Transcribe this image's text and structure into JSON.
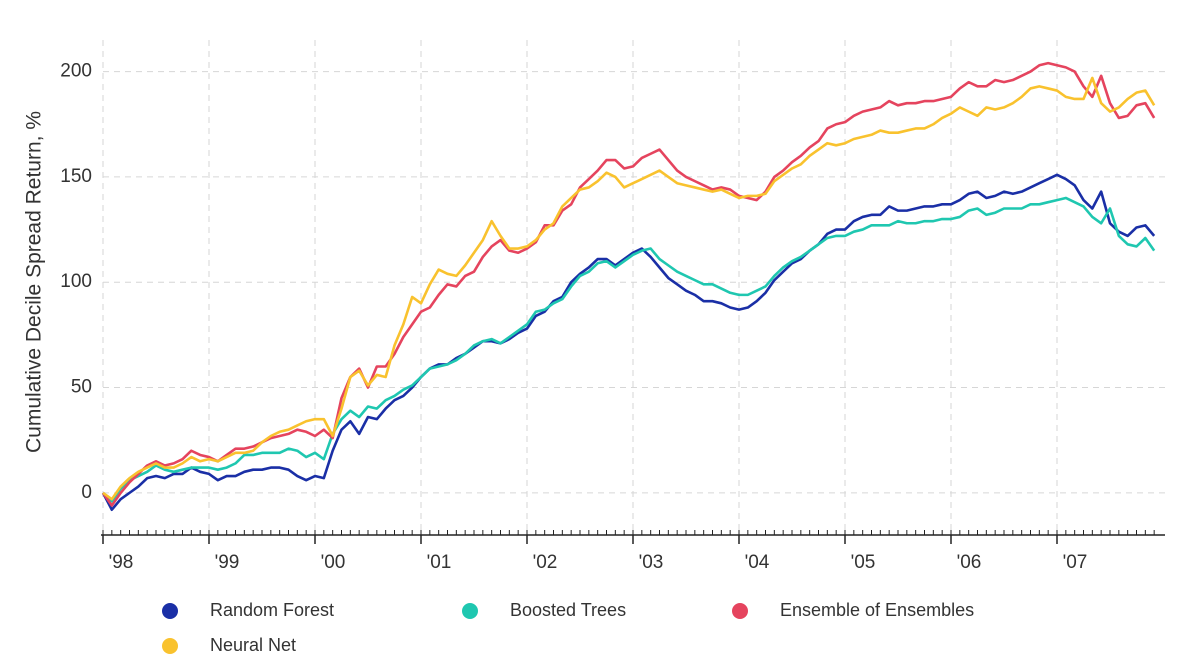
{
  "chart_data": {
    "type": "line",
    "y_label": "Cumulative Decile Spread Return, %",
    "categories": [
      "'98",
      null,
      null,
      null,
      null,
      null,
      null,
      null,
      null,
      null,
      null,
      null,
      "'99",
      null,
      null,
      null,
      null,
      null,
      null,
      null,
      null,
      null,
      null,
      null,
      "'00",
      null,
      null,
      null,
      null,
      null,
      null,
      null,
      null,
      null,
      null,
      null,
      "'01",
      null,
      null,
      null,
      null,
      null,
      null,
      null,
      null,
      null,
      null,
      null,
      "'02",
      null,
      null,
      null,
      null,
      null,
      null,
      null,
      null,
      null,
      null,
      null,
      "'03",
      null,
      null,
      null,
      null,
      null,
      null,
      null,
      null,
      null,
      null,
      null,
      "'04",
      null,
      null,
      null,
      null,
      null,
      null,
      null,
      null,
      null,
      null,
      null,
      "'05",
      null,
      null,
      null,
      null,
      null,
      null,
      null,
      null,
      null,
      null,
      null,
      "'06",
      null,
      null,
      null,
      null,
      null,
      null,
      null,
      null,
      null,
      null,
      null,
      "'07",
      null,
      null,
      null,
      null,
      null,
      null,
      null,
      null,
      null,
      null,
      null
    ],
    "ylim": [
      -20,
      215
    ],
    "yticks": [
      0,
      50,
      100,
      150,
      200
    ],
    "grid": true,
    "series": [
      {
        "name": "Random Forest",
        "color": "#1a2fa6",
        "values": [
          0,
          -8,
          -3,
          0,
          3,
          7,
          8,
          7,
          9,
          9,
          12,
          10,
          9,
          6,
          8,
          8,
          10,
          11,
          11,
          12,
          12,
          11,
          8,
          6,
          8,
          7,
          20,
          30,
          34,
          28,
          36,
          35,
          40,
          44,
          46,
          50,
          55,
          59,
          61,
          61,
          64,
          66,
          69,
          72,
          72,
          71,
          73,
          76,
          78,
          84,
          86,
          91,
          93,
          100,
          104,
          107,
          111,
          111,
          108,
          111,
          114,
          116,
          112,
          107,
          102,
          99,
          96,
          94,
          91,
          91,
          90,
          88,
          87,
          88,
          91,
          95,
          101,
          105,
          109,
          111,
          115,
          118,
          123,
          125,
          125,
          129,
          131,
          132,
          132,
          136,
          134,
          134,
          135,
          136,
          136,
          137,
          137,
          139,
          142,
          143,
          140,
          141,
          143,
          142,
          143,
          145,
          147,
          149,
          151,
          149,
          146,
          139,
          135,
          143,
          128,
          124,
          122,
          126,
          127,
          122
        ]
      },
      {
        "name": "Boosted Trees",
        "color": "#1fc7b0",
        "values": [
          0,
          -4,
          2,
          6,
          8,
          10,
          13,
          11,
          10,
          11,
          12,
          12,
          12,
          11,
          12,
          14,
          18,
          18,
          19,
          19,
          19,
          21,
          20,
          17,
          19,
          16,
          28,
          35,
          39,
          36,
          41,
          40,
          44,
          46,
          49,
          51,
          55,
          59,
          60,
          61,
          63,
          66,
          70,
          72,
          73,
          71,
          74,
          77,
          80,
          86,
          87,
          90,
          92,
          98,
          103,
          105,
          109,
          110,
          107,
          110,
          113,
          115,
          116,
          111,
          108,
          105,
          103,
          101,
          99,
          99,
          97,
          95,
          94,
          94,
          96,
          98,
          103,
          107,
          110,
          112,
          115,
          118,
          121,
          122,
          122,
          124,
          125,
          127,
          127,
          127,
          129,
          128,
          128,
          129,
          129,
          130,
          130,
          131,
          134,
          135,
          132,
          133,
          135,
          135,
          135,
          137,
          137,
          138,
          139,
          140,
          138,
          136,
          131,
          128,
          135,
          122,
          118,
          117,
          121,
          115
        ]
      },
      {
        "name": "Ensemble of Ensembles",
        "color": "#e5445e",
        "values": [
          0,
          -6,
          0,
          5,
          9,
          13,
          15,
          13,
          14,
          16,
          20,
          18,
          17,
          15,
          18,
          21,
          21,
          22,
          24,
          26,
          27,
          28,
          30,
          29,
          27,
          30,
          26,
          45,
          55,
          59,
          50,
          60,
          60,
          66,
          74,
          80,
          86,
          88,
          94,
          99,
          98,
          103,
          105,
          112,
          117,
          120,
          115,
          114,
          116,
          119,
          127,
          127,
          134,
          137,
          145,
          149,
          153,
          158,
          158,
          154,
          155,
          159,
          161,
          163,
          158,
          153,
          150,
          148,
          146,
          144,
          145,
          144,
          141,
          140,
          139,
          143,
          150,
          153,
          157,
          160,
          164,
          167,
          173,
          175,
          176,
          179,
          181,
          182,
          183,
          186,
          184,
          185,
          185,
          186,
          186,
          187,
          188,
          192,
          195,
          193,
          193,
          196,
          195,
          196,
          198,
          200,
          203,
          204,
          203,
          202,
          200,
          193,
          188,
          198,
          185,
          178,
          179,
          184,
          185,
          178
        ]
      },
      {
        "name": "Neural Net",
        "color": "#f9c22e",
        "values": [
          0,
          -3,
          3,
          7,
          10,
          12,
          14,
          12,
          12,
          14,
          17,
          15,
          16,
          15,
          17,
          19,
          19,
          20,
          24,
          27,
          29,
          30,
          32,
          34,
          35,
          35,
          27,
          40,
          55,
          58,
          51,
          56,
          55,
          70,
          80,
          93,
          90,
          99,
          106,
          104,
          103,
          108,
          114,
          120,
          129,
          122,
          116,
          116,
          117,
          120,
          125,
          128,
          136,
          140,
          144,
          145,
          148,
          152,
          150,
          145,
          147,
          149,
          151,
          153,
          150,
          147,
          146,
          145,
          144,
          143,
          144,
          142,
          140,
          141,
          141,
          142,
          148,
          151,
          154,
          156,
          160,
          163,
          166,
          165,
          166,
          168,
          169,
          170,
          172,
          171,
          171,
          172,
          173,
          173,
          175,
          178,
          180,
          183,
          181,
          179,
          183,
          182,
          183,
          185,
          188,
          192,
          193,
          192,
          191,
          188,
          187,
          187,
          197,
          185,
          181,
          183,
          187,
          190,
          191,
          184
        ]
      }
    ]
  }
}
